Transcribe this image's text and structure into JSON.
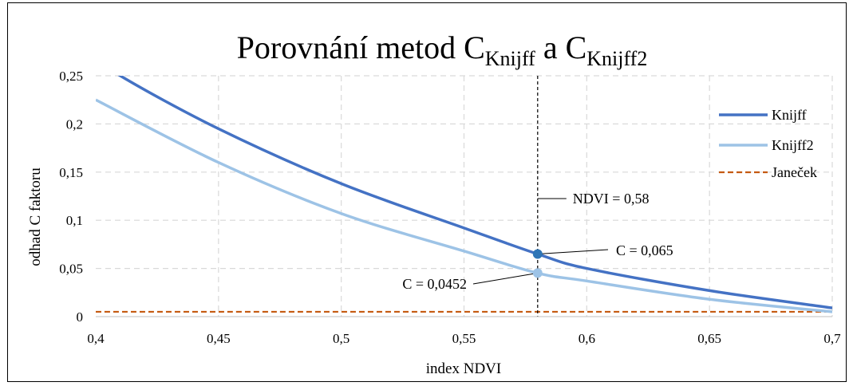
{
  "chart_data": {
    "type": "line",
    "title": {
      "prefix": "Porovnání metod C",
      "sub1": "Knijff",
      "middle": " a C",
      "sub2": "Knijff2"
    },
    "xlabel": "index NDVI",
    "ylabel": "odhad C faktoru",
    "xlim": [
      0.4,
      0.7
    ],
    "ylim": [
      0,
      0.25
    ],
    "x_ticks": [
      0.4,
      0.45,
      0.5,
      0.55,
      0.6,
      0.65,
      0.7
    ],
    "x_tick_labels": [
      "0,4",
      "0,45",
      "0,5",
      "0,55",
      "0,6",
      "0,65",
      "0,7"
    ],
    "y_ticks": [
      0,
      0.05,
      0.1,
      0.15,
      0.2,
      0.25
    ],
    "y_tick_labels": [
      "0",
      "0,05",
      "0,1",
      "0,15",
      "0,2",
      "0,25"
    ],
    "grid": true,
    "legend_position": "right",
    "series": [
      {
        "name": "Knijff",
        "color": "#4472C4",
        "style": "solid",
        "x": [
          0.4,
          0.41,
          0.45,
          0.5,
          0.55,
          0.58,
          0.6,
          0.65,
          0.7
        ],
        "y": [
          0.271,
          0.25,
          0.195,
          0.138,
          0.092,
          0.065,
          0.05,
          0.027,
          0.009
        ]
      },
      {
        "name": "Knijff2",
        "color": "#9DC3E6",
        "style": "solid",
        "x": [
          0.4,
          0.45,
          0.5,
          0.55,
          0.58,
          0.6,
          0.65,
          0.7
        ],
        "y": [
          0.225,
          0.16,
          0.107,
          0.068,
          0.0452,
          0.037,
          0.018,
          0.005
        ]
      },
      {
        "name": "Janeček",
        "color": "#C55A11",
        "style": "dashed",
        "x": [
          0.4,
          0.7
        ],
        "y": [
          0.005,
          0.005
        ]
      }
    ],
    "vline": {
      "x": 0.58,
      "label": "NDVI = 0,58"
    },
    "points": [
      {
        "x": 0.58,
        "y": 0.065,
        "color": "#2E75B6",
        "label": "C = 0,065"
      },
      {
        "x": 0.58,
        "y": 0.0452,
        "color": "#9DC3E6",
        "label": "C = 0,0452"
      }
    ]
  }
}
